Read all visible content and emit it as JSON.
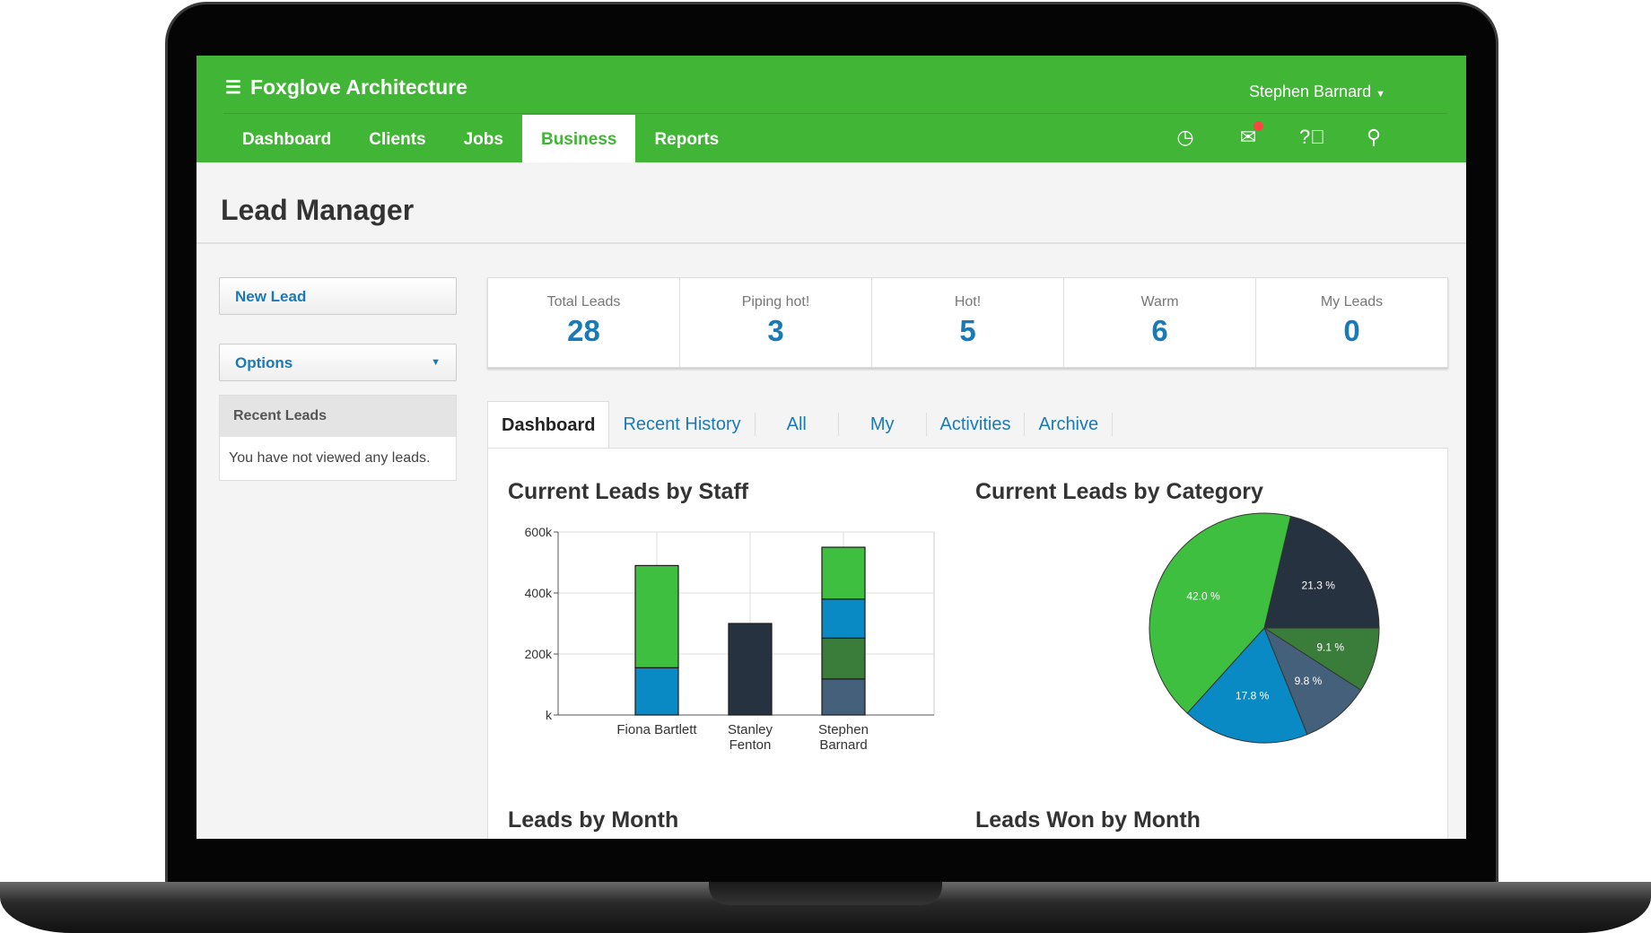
{
  "app": {
    "title": "Foxglove Architecture",
    "user": "Stephen Barnard"
  },
  "nav": [
    "Dashboard",
    "Clients",
    "Jobs",
    "Business",
    "Reports"
  ],
  "nav_active": "Business",
  "header_icons": [
    "clock-icon",
    "mail-icon",
    "help-icon",
    "search-icon"
  ],
  "page_title": "Lead Manager",
  "sidebar": {
    "new_lead": "New Lead",
    "options": "Options",
    "recent_title": "Recent Leads",
    "recent_empty": "You have not viewed any leads."
  },
  "stats": [
    {
      "label": "Total Leads",
      "value": "28"
    },
    {
      "label": "Piping hot!",
      "value": "3"
    },
    {
      "label": "Hot!",
      "value": "5"
    },
    {
      "label": "Warm",
      "value": "6"
    },
    {
      "label": "My Leads",
      "value": "0"
    }
  ],
  "tabs": [
    "Dashboard",
    "Recent History",
    "All",
    "My",
    "Activities",
    "Archive"
  ],
  "colors": {
    "brand": "#41b535",
    "link": "#1a7ab8",
    "green": "#3fbf3f",
    "blue": "#0a8ac4",
    "dark": "#26323f",
    "darkgreen": "#3a7d3a",
    "slate": "#44607a"
  },
  "chart_data": [
    {
      "type": "bar",
      "stacked": true,
      "title": "Current Leads by Staff",
      "categories": [
        "Fiona Bartlett",
        "Stanley Fenton",
        "Stephen Barnard"
      ],
      "yticks": [
        "k",
        "200k",
        "400k",
        "600k"
      ],
      "ylim": [
        0,
        600000
      ],
      "grid": true,
      "stacks": [
        [
          {
            "color": "blue",
            "value": 155000
          },
          {
            "color": "green",
            "value": 335000
          }
        ],
        [
          {
            "color": "dark",
            "value": 300000
          }
        ],
        [
          {
            "color": "slate",
            "value": 118000
          },
          {
            "color": "darkgreen",
            "value": 134000
          },
          {
            "color": "blue",
            "value": 128000
          },
          {
            "color": "green",
            "value": 170000
          }
        ]
      ]
    },
    {
      "type": "pie",
      "title": "Current Leads by Category",
      "slices": [
        {
          "value": 21.3,
          "label": "21.3 %",
          "color": "dark"
        },
        {
          "value": 9.1,
          "label": "9.1 %",
          "color": "darkgreen"
        },
        {
          "value": 9.8,
          "label": "9.8 %",
          "color": "slate"
        },
        {
          "value": 17.8,
          "label": "17.8 %",
          "color": "blue"
        },
        {
          "value": 42.0,
          "label": "42.0 %",
          "color": "green"
        }
      ]
    },
    {
      "type": "bar",
      "title": "Leads by Month"
    },
    {
      "type": "bar",
      "title": "Leads Won by Month"
    }
  ]
}
